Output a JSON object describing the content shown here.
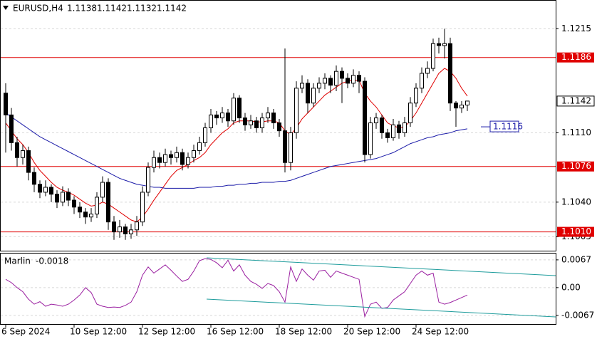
{
  "chart_data": {
    "type": "candlestick",
    "symbol": "EURUSD,H4",
    "categories": [
      "6 Sep 2024",
      null,
      null,
      null,
      null,
      null,
      null,
      null,
      null,
      null,
      null,
      null,
      "10 Sep 12:00",
      null,
      null,
      null,
      null,
      null,
      null,
      null,
      null,
      null,
      null,
      null,
      "12 Sep 12:00",
      null,
      null,
      null,
      null,
      null,
      null,
      null,
      null,
      null,
      null,
      null,
      "16 Sep 12:00",
      null,
      null,
      null,
      null,
      null,
      null,
      null,
      null,
      null,
      null,
      null,
      "18 Sep 12:00",
      null,
      null,
      null,
      null,
      null,
      null,
      null,
      null,
      null,
      null,
      null,
      "20 Sep 12:00",
      null,
      null,
      null,
      null,
      null,
      null,
      null,
      null,
      null,
      null,
      null,
      "24 Sep 12:00",
      null,
      null,
      null,
      null,
      null,
      null,
      null,
      null,
      null
    ],
    "ohlc": [
      [
        1.115,
        1.116,
        1.109,
        1.1128
      ],
      [
        1.1128,
        1.1135,
        1.1092,
        1.11
      ],
      [
        1.11,
        1.1106,
        1.1076,
        1.1085
      ],
      [
        1.1085,
        1.1098,
        1.1078,
        1.1092
      ],
      [
        1.1092,
        1.1096,
        1.1062,
        1.107
      ],
      [
        1.107,
        1.1075,
        1.105,
        1.1058
      ],
      [
        1.1058,
        1.1062,
        1.1044,
        1.105
      ],
      [
        1.105,
        1.1062,
        1.1046,
        1.1055
      ],
      [
        1.1055,
        1.1058,
        1.104,
        1.1048
      ],
      [
        1.1048,
        1.1052,
        1.1034,
        1.104
      ],
      [
        1.104,
        1.1056,
        1.1036,
        1.105
      ],
      [
        1.105,
        1.1054,
        1.1036,
        1.1042
      ],
      [
        1.1042,
        1.1046,
        1.1028,
        1.1035
      ],
      [
        1.1035,
        1.104,
        1.1024,
        1.103
      ],
      [
        1.103,
        1.1034,
        1.1018,
        1.1025
      ],
      [
        1.1025,
        1.1034,
        1.102,
        1.1028
      ],
      [
        1.1028,
        1.105,
        1.1024,
        1.1045
      ],
      [
        1.1045,
        1.1066,
        1.104,
        1.106
      ],
      [
        1.106,
        1.1064,
        1.1012,
        1.102
      ],
      [
        1.102,
        1.1026,
        1.1002,
        1.101
      ],
      [
        1.101,
        1.1022,
        1.1004,
        1.1015
      ],
      [
        1.1015,
        1.1018,
        1.1002,
        1.1008
      ],
      [
        1.1008,
        1.1018,
        1.1003,
        1.1012
      ],
      [
        1.1012,
        1.1026,
        1.1006,
        1.102
      ],
      [
        1.102,
        1.1056,
        1.1016,
        1.105
      ],
      [
        1.105,
        1.108,
        1.1046,
        1.1075
      ],
      [
        1.1075,
        1.1092,
        1.107,
        1.1085
      ],
      [
        1.1085,
        1.109,
        1.1074,
        1.108
      ],
      [
        1.108,
        1.1094,
        1.1076,
        1.1088
      ],
      [
        1.1088,
        1.1092,
        1.1078,
        1.1085
      ],
      [
        1.1085,
        1.1096,
        1.108,
        1.109
      ],
      [
        1.109,
        1.1094,
        1.1072,
        1.1078
      ],
      [
        1.1078,
        1.109,
        1.1074,
        1.1085
      ],
      [
        1.1085,
        1.1098,
        1.108,
        1.1092
      ],
      [
        1.1092,
        1.1106,
        1.1088,
        1.11
      ],
      [
        1.11,
        1.112,
        1.1096,
        1.1115
      ],
      [
        1.1115,
        1.1134,
        1.111,
        1.1128
      ],
      [
        1.1128,
        1.1132,
        1.1118,
        1.1125
      ],
      [
        1.1125,
        1.1136,
        1.112,
        1.113
      ],
      [
        1.113,
        1.1134,
        1.1116,
        1.1122
      ],
      [
        1.1122,
        1.115,
        1.1118,
        1.1145
      ],
      [
        1.1145,
        1.1148,
        1.112,
        1.1125
      ],
      [
        1.1125,
        1.113,
        1.1112,
        1.1118
      ],
      [
        1.1118,
        1.1128,
        1.1114,
        1.1122
      ],
      [
        1.1122,
        1.1126,
        1.111,
        1.1115
      ],
      [
        1.1115,
        1.113,
        1.111,
        1.1125
      ],
      [
        1.1125,
        1.1136,
        1.112,
        1.113
      ],
      [
        1.113,
        1.1134,
        1.1114,
        1.112
      ],
      [
        1.112,
        1.1124,
        1.1106,
        1.1112
      ],
      [
        1.1112,
        1.1195,
        1.107,
        1.108
      ],
      [
        1.108,
        1.1116,
        1.1072,
        1.111
      ],
      [
        1.111,
        1.1162,
        1.1104,
        1.1155
      ],
      [
        1.1155,
        1.1168,
        1.115,
        1.116
      ],
      [
        1.116,
        1.1164,
        1.113,
        1.114
      ],
      [
        1.114,
        1.116,
        1.1136,
        1.1155
      ],
      [
        1.1155,
        1.1166,
        1.115,
        1.116
      ],
      [
        1.116,
        1.117,
        1.1154,
        1.1165
      ],
      [
        1.1165,
        1.1168,
        1.115,
        1.1158
      ],
      [
        1.1158,
        1.1178,
        1.1152,
        1.1172
      ],
      [
        1.1172,
        1.1176,
        1.114,
        1.1165
      ],
      [
        1.1165,
        1.117,
        1.1155,
        1.116
      ],
      [
        1.116,
        1.1174,
        1.1156,
        1.1168
      ],
      [
        1.1168,
        1.1172,
        1.115,
        1.1162
      ],
      [
        1.1162,
        1.1166,
        1.108,
        1.1088
      ],
      [
        1.1088,
        1.1126,
        1.1084,
        1.112
      ],
      [
        1.112,
        1.113,
        1.1114,
        1.1125
      ],
      [
        1.1125,
        1.1128,
        1.1104,
        1.111
      ],
      [
        1.111,
        1.1114,
        1.11,
        1.1105
      ],
      [
        1.1105,
        1.1124,
        1.1102,
        1.1118
      ],
      [
        1.1118,
        1.1122,
        1.1104,
        1.111
      ],
      [
        1.111,
        1.1126,
        1.1106,
        1.112
      ],
      [
        1.112,
        1.1146,
        1.1116,
        1.114
      ],
      [
        1.114,
        1.116,
        1.1136,
        1.1155
      ],
      [
        1.1155,
        1.1176,
        1.115,
        1.117
      ],
      [
        1.117,
        1.1182,
        1.1165,
        1.1175
      ],
      [
        1.1175,
        1.1205,
        1.1172,
        1.12
      ],
      [
        1.12,
        1.1206,
        1.119,
        1.1198
      ],
      [
        1.1198,
        1.1215,
        1.1185,
        1.12
      ],
      [
        1.12,
        1.1206,
        1.1132,
        1.114
      ],
      [
        1.114,
        1.1142,
        1.1116,
        1.1135
      ],
      [
        1.1135,
        1.1142,
        1.113,
        1.1138
      ],
      [
        1.1138,
        1.1142,
        1.1132,
        1.1142
      ]
    ],
    "up_color": "#ffffff",
    "down_color": "#000000",
    "ylim": [
      1.0991,
      1.1244
    ],
    "yticks": [
      1.1215,
      {
        "value": 1.111,
        "label": "1.1110"
      },
      {
        "value": 1.104,
        "label": "1.1040"
      },
      {
        "value": 1.1005,
        "label": "1.1005"
      }
    ],
    "grid": true,
    "levels": [
      1.1186,
      1.1076,
      {
        "value": 1.101,
        "label": "1.1010"
      }
    ],
    "level_color": "#e00000",
    "last_price": 1.1142,
    "moving_averages": [
      {
        "color": "#e00000",
        "values": [
          1.112,
          1.1112,
          1.1104,
          1.1098,
          1.109,
          1.108,
          1.1072,
          1.1066,
          1.106,
          1.1055,
          1.1052,
          1.105,
          1.1047,
          1.1043,
          1.1039,
          1.1036,
          1.1037,
          1.104,
          1.1038,
          1.1034,
          1.103,
          1.1026,
          1.1022,
          1.102,
          1.1025,
          1.1033,
          1.1042,
          1.105,
          1.1058,
          1.1066,
          1.1072,
          1.1075,
          1.1078,
          1.1082,
          1.1085,
          1.109,
          1.1098,
          1.1104,
          1.111,
          1.1114,
          1.112,
          1.1122,
          1.1122,
          1.1122,
          1.1121,
          1.1121,
          1.1122,
          1.1122,
          1.112,
          1.1112,
          1.1108,
          1.1115,
          1.1124,
          1.113,
          1.1136,
          1.1142,
          1.1148,
          1.1152,
          1.1156,
          1.116,
          1.1162,
          1.1163,
          1.1163,
          1.115,
          1.1142,
          1.1136,
          1.1128,
          1.112,
          1.1117,
          1.1115,
          1.1116,
          1.1122,
          1.113,
          1.114,
          1.115,
          1.116,
          1.117,
          1.1175,
          1.1172,
          1.1165,
          1.1155,
          1.1147
        ]
      },
      {
        "color": "#1a1aa8",
        "values": [
          1.113,
          1.1126,
          1.1122,
          1.1118,
          1.1114,
          1.111,
          1.1106,
          1.1103,
          1.11,
          1.1097,
          1.1094,
          1.1091,
          1.1088,
          1.1085,
          1.1082,
          1.1079,
          1.1076,
          1.1073,
          1.107,
          1.1067,
          1.1064,
          1.1062,
          1.106,
          1.1058,
          1.1057,
          1.1056,
          1.1055,
          1.1055,
          1.1054,
          1.1054,
          1.1054,
          1.1054,
          1.1054,
          1.1054,
          1.1055,
          1.1055,
          1.1055,
          1.1056,
          1.1056,
          1.1057,
          1.1057,
          1.1058,
          1.1058,
          1.1059,
          1.1059,
          1.106,
          1.106,
          1.106,
          1.1061,
          1.1061,
          1.1062,
          1.1064,
          1.1066,
          1.1068,
          1.107,
          1.1072,
          1.1074,
          1.1076,
          1.1077,
          1.1078,
          1.1079,
          1.108,
          1.1081,
          1.1082,
          1.1083,
          1.1084,
          1.1086,
          1.1088,
          1.109,
          1.1093,
          1.1096,
          1.1099,
          1.1101,
          1.1103,
          1.1105,
          1.1106,
          1.1108,
          1.1109,
          1.111,
          1.1112,
          1.1113,
          1.1114
        ]
      }
    ],
    "ma_label": 1.1116,
    "indicator": {
      "name": "Marlin",
      "color": "#9a1fa0",
      "ylim": [
        -0.0088,
        0.0084
      ],
      "yticks": [
        0.0067,
        {
          "value": 0,
          "label": "0.00"
        },
        -0.0067
      ],
      "values": [
        0.002,
        0.0012,
        0.0,
        -0.001,
        -0.0028,
        -0.004,
        -0.0034,
        -0.0045,
        -0.004,
        -0.0042,
        -0.0045,
        -0.004,
        -0.003,
        -0.0018,
        0.0,
        -0.0012,
        -0.004,
        -0.0045,
        -0.0048,
        -0.0047,
        -0.0048,
        -0.0043,
        -0.0035,
        -0.001,
        0.003,
        0.005,
        0.0035,
        0.0045,
        0.0055,
        0.0042,
        0.0028,
        0.0015,
        0.002,
        0.004,
        0.0065,
        0.007,
        0.0068,
        0.006,
        0.0048,
        0.0066,
        0.004,
        0.0055,
        0.003,
        0.0015,
        0.0008,
        -0.0002,
        0.001,
        0.0005,
        -0.001,
        -0.0035,
        0.005,
        0.0015,
        0.0045,
        0.003,
        0.0018,
        0.004,
        0.0042,
        0.0025,
        0.004,
        0.0035,
        0.003,
        0.0025,
        0.002,
        -0.007,
        -0.004,
        -0.0035,
        -0.005,
        -0.0048,
        -0.003,
        -0.002,
        -0.001,
        0.001,
        0.003,
        0.004,
        0.003,
        0.0035,
        -0.0035,
        -0.004,
        -0.0036,
        -0.003,
        -0.0024,
        -0.0018
      ]
    }
  }
}
